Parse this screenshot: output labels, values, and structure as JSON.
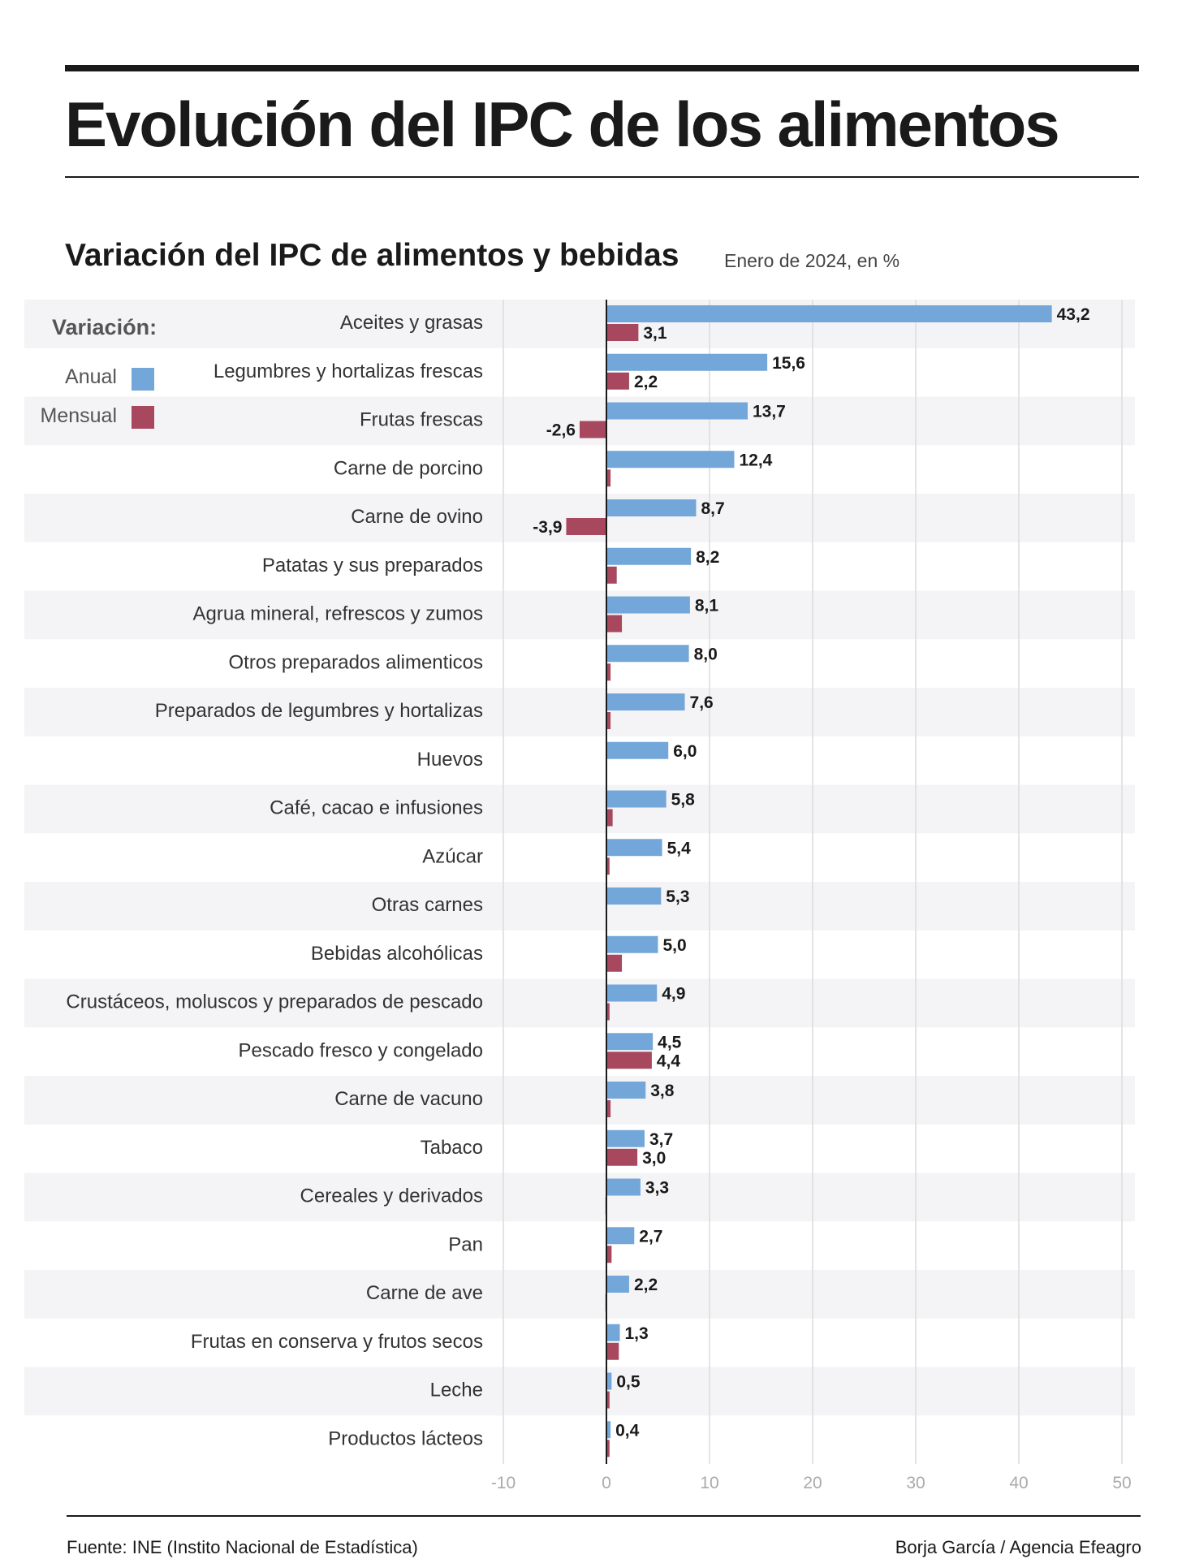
{
  "title": "Evolución del IPC de los alimentos",
  "subtitle": "Variación del IPC de alimentos y bebidas",
  "subtitle_note": "Enero de 2024, en %",
  "legend": {
    "title": "Variación:",
    "items": [
      {
        "label": "Anual",
        "color": "#74a7d9"
      },
      {
        "label": "Mensual",
        "color": "#a8485f"
      }
    ]
  },
  "footer": {
    "source": "Fuente: INE (Instito Nacional de Estadística)",
    "credit": "Borja García / Agencia Efeagro"
  },
  "chart_data": {
    "type": "bar",
    "orientation": "horizontal",
    "categories": [
      "Aceites y grasas",
      "Legumbres y hortalizas frescas",
      "Frutas frescas",
      "Carne de porcino",
      "Carne de ovino",
      "Patatas y sus preparados",
      "Agrua mineral, refrescos y zumos",
      "Otros preparados alimenticos",
      "Preparados de legumbres y hortalizas",
      "Huevos",
      "Café, cacao e infusiones",
      "Azúcar",
      "Otras carnes",
      "Bebidas alcohólicas",
      "Crustáceos, moluscos y preparados de pescado",
      "Pescado fresco y congelado",
      "Carne de vacuno",
      "Tabaco",
      "Cereales y derivados",
      "Pan",
      "Carne de ave",
      "Frutas en conserva y frutos secos",
      "Leche",
      "Productos lácteos"
    ],
    "series": [
      {
        "name": "Anual",
        "color": "#74a7d9",
        "values": [
          43.2,
          15.6,
          13.7,
          12.4,
          8.7,
          8.2,
          8.1,
          8.0,
          7.6,
          6.0,
          5.8,
          5.4,
          5.3,
          5.0,
          4.9,
          4.5,
          3.8,
          3.7,
          3.3,
          2.7,
          2.2,
          1.3,
          0.5,
          0.4
        ],
        "labels": [
          "43,2",
          "15,6",
          "13,7",
          "12,4",
          "8,7",
          "8,2",
          "8,1",
          "8,0",
          "7,6",
          "6,0",
          "5,8",
          "5,4",
          "5,3",
          "5,0",
          "4,9",
          "4,5",
          "3,8",
          "3,7",
          "3,3",
          "2,7",
          "2,2",
          "1,3",
          "0,5",
          "0,4"
        ]
      },
      {
        "name": "Mensual",
        "color": "#a8485f",
        "values": [
          3.1,
          2.2,
          -2.6,
          0.4,
          -3.9,
          1.0,
          1.5,
          0.4,
          0.4,
          0.0,
          0.6,
          0.3,
          0.0,
          1.5,
          0.3,
          4.4,
          0.4,
          3.0,
          -0.1,
          0.5,
          -0.1,
          1.2,
          0.3,
          0.3
        ],
        "labels": [
          "3,1",
          "2,2",
          "-2,6",
          "",
          "-3,9",
          "",
          "",
          "",
          "",
          "",
          "",
          "",
          "",
          "",
          "",
          "4,4",
          "",
          "3,0",
          "",
          "",
          "",
          "",
          "",
          ""
        ]
      }
    ],
    "xlim": [
      -10,
      50
    ],
    "xticks": [
      -10,
      0,
      10,
      20,
      30,
      40,
      50
    ],
    "grid": true,
    "legend_position": "top-left"
  }
}
